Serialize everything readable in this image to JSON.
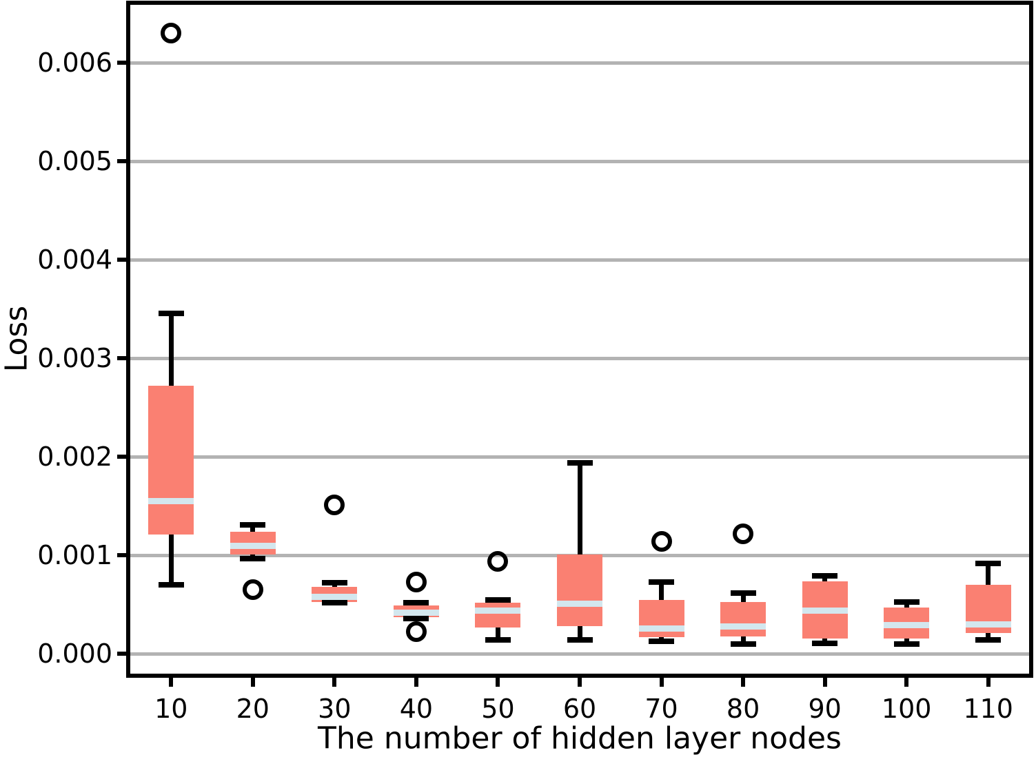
{
  "figure": {
    "ylabel": "Loss",
    "xlabel": "The number of hidden layer nodes"
  },
  "chart_data": {
    "type": "boxplot",
    "title": "",
    "xlabel": "The number of hidden layer nodes",
    "ylabel": "Loss",
    "categories": [
      "10",
      "20",
      "30",
      "40",
      "50",
      "60",
      "70",
      "80",
      "90",
      "100",
      "110"
    ],
    "ytick_values": [
      0.0,
      0.001,
      0.002,
      0.003,
      0.004,
      0.005,
      0.006
    ],
    "ytick_labels": [
      "0.000",
      "0.001",
      "0.002",
      "0.003",
      "0.004",
      "0.005",
      "0.006"
    ],
    "ylim": [
      -0.0002,
      0.00659
    ],
    "grid": "horizontal-gridlines-behind-boxes",
    "legend": false,
    "series": [
      {
        "category": "10",
        "whisker_low": 0.0007,
        "q1": 0.00121,
        "median": 0.00155,
        "q3": 0.00272,
        "whisker_high": 0.00346,
        "outliers": [
          0.0063
        ]
      },
      {
        "category": "20",
        "whisker_low": 0.00097,
        "q1": 0.00101,
        "median": 0.0011,
        "q3": 0.00124,
        "whisker_high": 0.00131,
        "outliers": [
          0.00065
        ]
      },
      {
        "category": "30",
        "whisker_low": 0.00052,
        "q1": 0.00053,
        "median": 0.00058,
        "q3": 0.00068,
        "whisker_high": 0.00072,
        "outliers": [
          0.00151
        ]
      },
      {
        "category": "40",
        "whisker_low": 0.00036,
        "q1": 0.00037,
        "median": 0.00042,
        "q3": 0.00049,
        "whisker_high": 0.00052,
        "outliers": [
          0.00073,
          0.00023
        ]
      },
      {
        "category": "50",
        "whisker_low": 0.00014,
        "q1": 0.00027,
        "median": 0.00044,
        "q3": 0.00052,
        "whisker_high": 0.00055,
        "outliers": [
          0.00094
        ]
      },
      {
        "category": "60",
        "whisker_low": 0.00014,
        "q1": 0.00028,
        "median": 0.00051,
        "q3": 0.00101,
        "whisker_high": 0.00194,
        "outliers": []
      },
      {
        "category": "70",
        "whisker_low": 0.00013,
        "q1": 0.00017,
        "median": 0.00026,
        "q3": 0.00055,
        "whisker_high": 0.00073,
        "outliers": [
          0.00114
        ]
      },
      {
        "category": "80",
        "whisker_low": 0.0001,
        "q1": 0.00018,
        "median": 0.00028,
        "q3": 0.00053,
        "whisker_high": 0.00062,
        "outliers": [
          0.00122
        ]
      },
      {
        "category": "90",
        "whisker_low": 0.00011,
        "q1": 0.00016,
        "median": 0.00044,
        "q3": 0.00074,
        "whisker_high": 0.00079,
        "outliers": []
      },
      {
        "category": "100",
        "whisker_low": 0.0001,
        "q1": 0.00016,
        "median": 0.00029,
        "q3": 0.00047,
        "whisker_high": 0.00053,
        "outliers": []
      },
      {
        "category": "110",
        "whisker_low": 0.00014,
        "q1": 0.00021,
        "median": 0.0003,
        "q3": 0.0007,
        "whisker_high": 0.00092,
        "outliers": []
      }
    ],
    "colors": {
      "box_fill": "#fa8072",
      "median_line": "#d3e7ee",
      "grid_line": "#b3b3b3",
      "axis_line": "#000000"
    }
  }
}
